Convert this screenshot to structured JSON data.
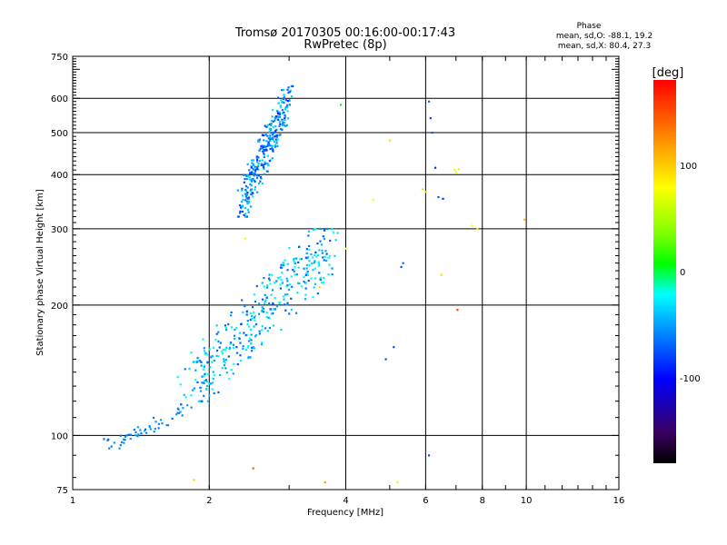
{
  "chart_data": {
    "type": "scatter",
    "title": "Tromsø 20170305 00:16:00-00:17:43",
    "subtitle": "RwPretec (8p)",
    "xlabel": "Frequency [MHz]",
    "ylabel": "Stationary phase Virtual Height [km]",
    "x_scale": "log",
    "y_scale": "log",
    "xlim": [
      1,
      16
    ],
    "ylim": [
      75,
      750
    ],
    "x_ticks": [
      1,
      2,
      4,
      6,
      8,
      10,
      16
    ],
    "y_ticks": [
      75,
      100,
      200,
      300,
      400,
      500,
      600,
      750
    ],
    "grid": true,
    "phase_box": {
      "heading": "Phase",
      "line_o": "mean, sd,O: -88.1, 19.2",
      "line_x": "mean, sd,X: 80.4, 27.3"
    },
    "colorbar": {
      "label": "[deg]",
      "ticks": [
        "100",
        "0",
        "-100"
      ],
      "tick_values": [
        100,
        0,
        -100
      ],
      "range": [
        -180,
        180
      ]
    },
    "clusters": [
      {
        "f": [
          2.35,
          3.0
        ],
        "h": [
          320,
          640
        ],
        "n": 300,
        "phase": -100,
        "spread": 30
      },
      {
        "f": [
          1.8,
          3.7
        ],
        "h": [
          120,
          300
        ],
        "n": 380,
        "phase": -85,
        "spread": 35
      },
      {
        "f": [
          1.2,
          1.8
        ],
        "h": [
          93,
          118
        ],
        "n": 55,
        "phase": -100,
        "spread": 10
      }
    ],
    "points": [
      {
        "f": 6.95,
        "h": 410,
        "phase": 90
      },
      {
        "f": 7.1,
        "h": 412,
        "phase": 90
      },
      {
        "f": 7.0,
        "h": 405,
        "phase": 95
      },
      {
        "f": 5.9,
        "h": 370,
        "phase": 80
      },
      {
        "f": 6.0,
        "h": 365,
        "phase": 75
      },
      {
        "f": 7.6,
        "h": 305,
        "phase": 100
      },
      {
        "f": 7.8,
        "h": 300,
        "phase": 105
      },
      {
        "f": 5.3,
        "h": 245,
        "phase": -120
      },
      {
        "f": 5.35,
        "h": 250,
        "phase": -110
      },
      {
        "f": 6.4,
        "h": 355,
        "phase": -120
      },
      {
        "f": 6.55,
        "h": 352,
        "phase": -130
      },
      {
        "f": 6.1,
        "h": 590,
        "phase": -110
      },
      {
        "f": 6.15,
        "h": 540,
        "phase": -120
      },
      {
        "f": 6.2,
        "h": 500,
        "phase": -115
      },
      {
        "f": 6.3,
        "h": 415,
        "phase": -130
      },
      {
        "f": 9.9,
        "h": 315,
        "phase": 120
      },
      {
        "f": 5.0,
        "h": 480,
        "phase": 110
      },
      {
        "f": 4.6,
        "h": 350,
        "phase": 100
      },
      {
        "f": 5.1,
        "h": 160,
        "phase": -120
      },
      {
        "f": 4.9,
        "h": 150,
        "phase": -120
      },
      {
        "f": 6.1,
        "h": 90,
        "phase": -120
      },
      {
        "f": 7.05,
        "h": 195,
        "phase": 160
      },
      {
        "f": 3.9,
        "h": 580,
        "phase": 20
      },
      {
        "f": 3.5,
        "h": 220,
        "phase": 110
      },
      {
        "f": 2.5,
        "h": 84,
        "phase": 150
      },
      {
        "f": 3.6,
        "h": 78,
        "phase": 130
      },
      {
        "f": 1.85,
        "h": 79,
        "phase": 110
      },
      {
        "f": 2.4,
        "h": 285,
        "phase": 90
      },
      {
        "f": 5.2,
        "h": 78,
        "phase": 90
      },
      {
        "f": 4.0,
        "h": 270,
        "phase": 100
      },
      {
        "f": 6.5,
        "h": 235,
        "phase": 110
      }
    ]
  }
}
